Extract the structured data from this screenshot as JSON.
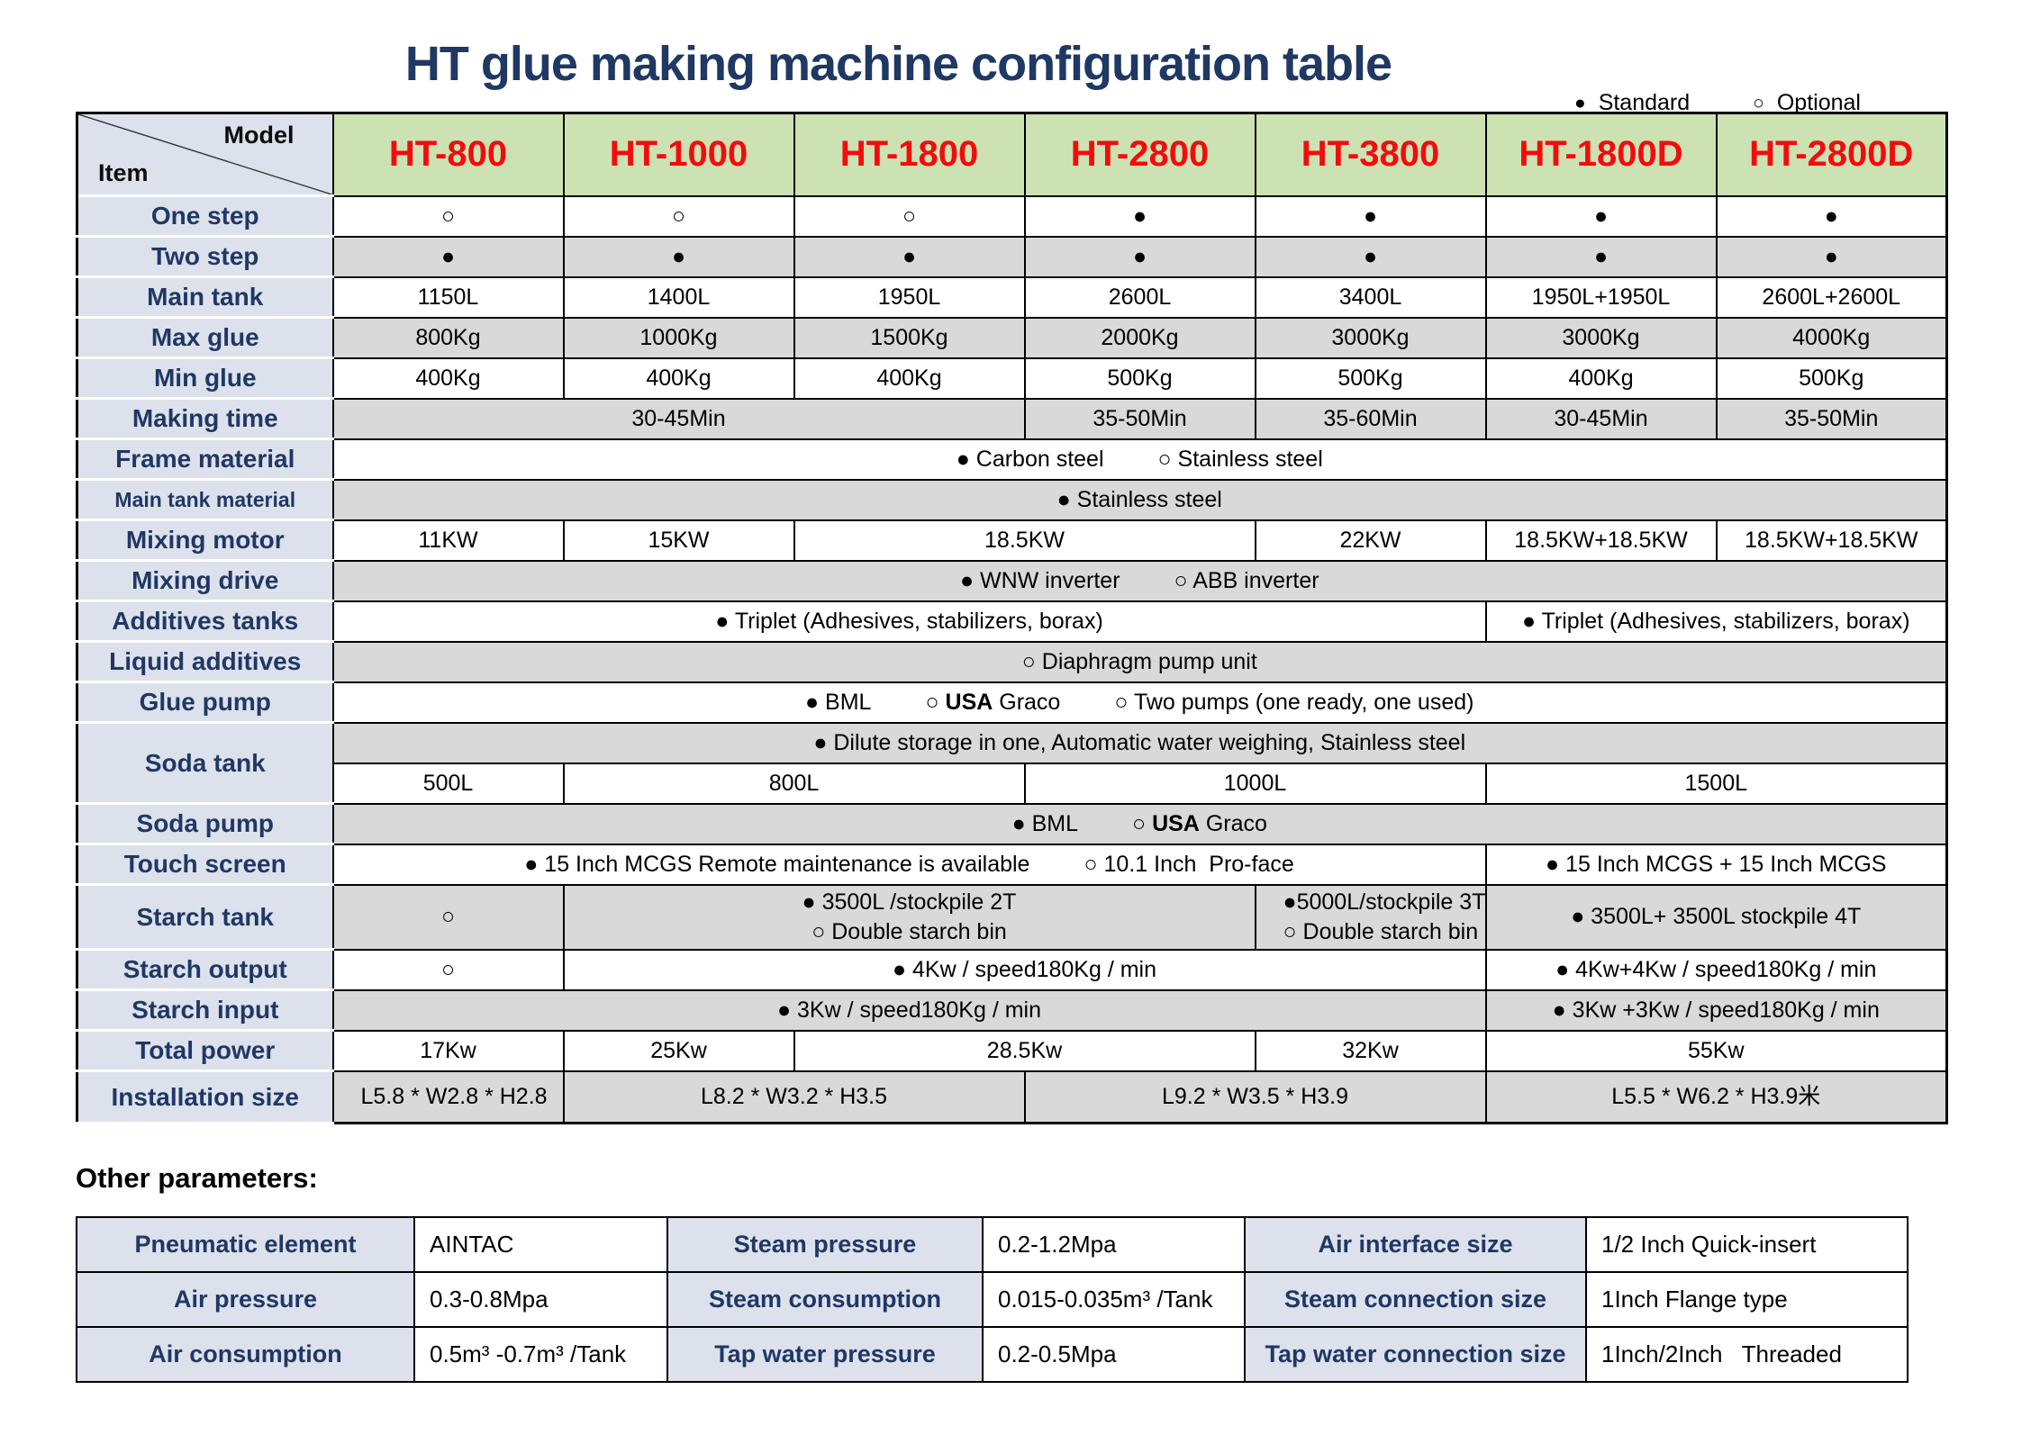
{
  "title": "HT glue making machine configuration table",
  "legend": {
    "standard_symbol": "●",
    "standard_label": "Standard",
    "optional_symbol": "○",
    "optional_label": "Optional"
  },
  "config_table": {
    "corner": {
      "top_right": "Model",
      "bottom_left": "Item"
    },
    "models": [
      "HT-800",
      "HT-1000",
      "HT-1800",
      "HT-2800",
      "HT-3800",
      "HT-1800D",
      "HT-2800D"
    ],
    "rows": [
      {
        "label": "One step",
        "cells": [
          "○",
          "○",
          "○",
          "●",
          "●",
          "●",
          "●"
        ]
      },
      {
        "label": "Two step",
        "cells": [
          "●",
          "●",
          "●",
          "●",
          "●",
          "●",
          "●"
        ]
      },
      {
        "label": "Main tank",
        "cells": [
          "1150L",
          "1400L",
          "1950L",
          "2600L",
          "3400L",
          "1950L+1950L",
          "2600L+2600L"
        ]
      },
      {
        "label": "Max glue",
        "cells": [
          "800Kg",
          "1000Kg",
          "1500Kg",
          "2000Kg",
          "3000Kg",
          "3000Kg",
          "4000Kg"
        ]
      },
      {
        "label": "Min glue",
        "cells": [
          "400Kg",
          "400Kg",
          "400Kg",
          "500Kg",
          "500Kg",
          "400Kg",
          "500Kg"
        ]
      },
      {
        "label": "Making time",
        "cells": [
          {
            "span": 3,
            "text": "30-45Min"
          },
          {
            "span": 1,
            "text": "35-50Min"
          },
          {
            "span": 1,
            "text": "35-60Min"
          },
          {
            "span": 1,
            "text": "30-45Min"
          },
          {
            "span": 1,
            "text": "35-50Min"
          }
        ]
      },
      {
        "label": "Frame material",
        "cells": [
          {
            "span": 7,
            "runs": [
              "● Carbon steel",
              "○ Stainless steel"
            ]
          }
        ]
      },
      {
        "label": "Main tank material",
        "small_label": true,
        "cells": [
          {
            "span": 7,
            "runs": [
              "● Stainless steel"
            ]
          }
        ]
      },
      {
        "label": "Mixing motor",
        "cells": [
          {
            "span": 1,
            "text": "11KW"
          },
          {
            "span": 1,
            "text": "15KW"
          },
          {
            "span": 2,
            "text": "18.5KW"
          },
          {
            "span": 1,
            "text": "22KW"
          },
          {
            "span": 1,
            "text": "18.5KW+18.5KW"
          },
          {
            "span": 1,
            "text": "18.5KW+18.5KW"
          }
        ]
      },
      {
        "label": "Mixing drive",
        "cells": [
          {
            "span": 7,
            "runs": [
              "● WNW inverter",
              "○ ABB inverter"
            ]
          }
        ]
      },
      {
        "label": "Additives tanks",
        "cells": [
          {
            "span": 5,
            "runs": [
              "● Triplet (Adhesives, stabilizers, borax)"
            ]
          },
          {
            "span": 2,
            "runs": [
              "● Triplet (Adhesives, stabilizers, borax)"
            ]
          }
        ]
      },
      {
        "label": "Liquid additives",
        "cells": [
          {
            "span": 7,
            "runs": [
              "○ Diaphragm pump unit"
            ]
          }
        ]
      },
      {
        "label": "Glue pump",
        "cells": [
          {
            "span": 7,
            "runs": [
              "● BML",
              [
                {
                  "t": "○ "
                },
                {
                  "t": "USA",
                  "b": true
                },
                {
                  "t": " Graco"
                }
              ],
              "○ Two pumps (one ready, one used)"
            ]
          }
        ]
      },
      {
        "label": "Soda tank",
        "subrows": [
          {
            "cells": [
              {
                "span": 7,
                "runs": [
                  "● Dilute storage in one, Automatic water weighing, Stainless steel"
                ]
              }
            ]
          },
          {
            "cells": [
              {
                "span": 1,
                "text": "500L"
              },
              {
                "span": 2,
                "text": "800L"
              },
              {
                "span": 2,
                "text": "1000L"
              },
              {
                "span": 2,
                "text": "1500L"
              }
            ]
          }
        ]
      },
      {
        "label": "Soda pump",
        "cells": [
          {
            "span": 7,
            "runs": [
              "● BML",
              [
                {
                  "t": "○ "
                },
                {
                  "t": "USA",
                  "b": true
                },
                {
                  "t": " Graco"
                }
              ]
            ]
          }
        ]
      },
      {
        "label": "Touch screen",
        "cells": [
          {
            "span": 5,
            "runs": [
              "● 15 Inch MCGS Remote maintenance is available",
              "○ 10.1 Inch  Pro-face"
            ]
          },
          {
            "span": 2,
            "runs": [
              "● 15 Inch MCGS + 15 Inch MCGS"
            ]
          }
        ]
      },
      {
        "label": "Starch tank",
        "cells": [
          {
            "span": 1,
            "text": "○"
          },
          {
            "span": 3,
            "lines": [
              "● 3500L /stockpile 2T",
              "○ Double starch bin"
            ]
          },
          {
            "span": 1,
            "lines": [
              "●5000L/stockpile 3T",
              "○ Double starch bin"
            ]
          },
          {
            "span": 2,
            "text": "● 3500L+ 3500L stockpile 4T"
          }
        ]
      },
      {
        "label": "Starch output",
        "cells": [
          {
            "span": 1,
            "text": "○"
          },
          {
            "span": 4,
            "text": "● 4Kw / speed180Kg / min"
          },
          {
            "span": 2,
            "text": "● 4Kw+4Kw / speed180Kg / min"
          }
        ]
      },
      {
        "label": "Starch input",
        "cells": [
          {
            "span": 5,
            "text": "● 3Kw / speed180Kg / min"
          },
          {
            "span": 2,
            "text": "● 3Kw +3Kw / speed180Kg / min"
          }
        ]
      },
      {
        "label": "Total power",
        "cells": [
          {
            "span": 1,
            "text": "17Kw"
          },
          {
            "span": 1,
            "text": "25Kw"
          },
          {
            "span": 2,
            "text": "28.5Kw"
          },
          {
            "span": 1,
            "text": "32Kw"
          },
          {
            "span": 2,
            "text": "55Kw"
          }
        ]
      },
      {
        "label": "Installation size",
        "cells": [
          {
            "span": 1,
            "text": "L5.8 * W2.8 * H2.8"
          },
          {
            "span": 2,
            "text": "L8.2 * W3.2 * H3.5"
          },
          {
            "span": 2,
            "text": "L9.2 * W3.5 * H3.9"
          },
          {
            "span": 2,
            "text": "L5.5 * W6.2 * H3.9米"
          }
        ]
      }
    ]
  },
  "other_parameters": {
    "heading": "Other parameters:",
    "rows": [
      [
        {
          "label": "Pneumatic element",
          "value": "AINTAC"
        },
        {
          "label": "Steam pressure",
          "value": "0.2-1.2Mpa"
        },
        {
          "label": "Air interface size",
          "value": "1/2 Inch Quick-insert"
        }
      ],
      [
        {
          "label": "Air pressure",
          "value": "0.3-0.8Mpa"
        },
        {
          "label": "Steam consumption",
          "value": "0.015-0.035m³ /Tank"
        },
        {
          "label": "Steam connection size",
          "value": "1Inch Flange type"
        }
      ],
      [
        {
          "label": "Air consumption",
          "value": "0.5m³ -0.7m³ /Tank"
        },
        {
          "label": "Tap water pressure",
          "value": "0.2-0.5Mpa"
        },
        {
          "label": "Tap water connection size",
          "value": "1Inch/2Inch   Threaded"
        }
      ]
    ]
  },
  "colors": {
    "title_navy": "#1F3864",
    "header_green": "#CCE2B3",
    "model_red": "#F40B0B",
    "label_blue": "#DCE1EC",
    "row_gray": "#D9D9D9"
  }
}
